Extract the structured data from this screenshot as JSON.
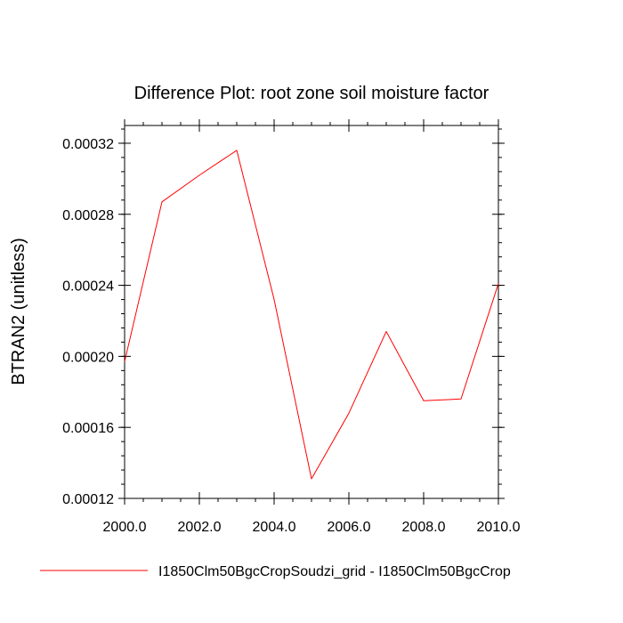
{
  "chart_data": {
    "type": "line",
    "title": "Difference Plot: root zone soil moisture factor",
    "xlabel": "",
    "ylabel": "BTRAN2  (unitless)",
    "xlim": [
      2000,
      2010
    ],
    "ylim": [
      0.00012,
      0.00033
    ],
    "x_ticks": [
      2000,
      2002,
      2004,
      2006,
      2008,
      2010
    ],
    "x_tick_labels": [
      "2000.0",
      "2002.0",
      "2004.0",
      "2006.0",
      "2008.0",
      "2010.0"
    ],
    "y_ticks": [
      0.00012,
      0.00016,
      0.0002,
      0.00024,
      0.00028,
      0.00032
    ],
    "y_tick_labels": [
      "0.00012",
      "0.00016",
      "0.00020",
      "0.00024",
      "0.00028",
      "0.00032"
    ],
    "x": [
      2000,
      2001,
      2002,
      2003,
      2004,
      2005,
      2006,
      2007,
      2008,
      2009,
      2010
    ],
    "series": [
      {
        "name": "I1850Clm50BgcCropSoudzi_grid - I1850Clm50BgcCrop",
        "color": "#ff0000",
        "values": [
          0.000197,
          0.000287,
          0.000302,
          0.000316,
          0.000232,
          0.000131,
          0.000168,
          0.000214,
          0.000175,
          0.000176,
          0.000241
        ]
      }
    ],
    "grid": false,
    "legend_position": "bottom"
  }
}
